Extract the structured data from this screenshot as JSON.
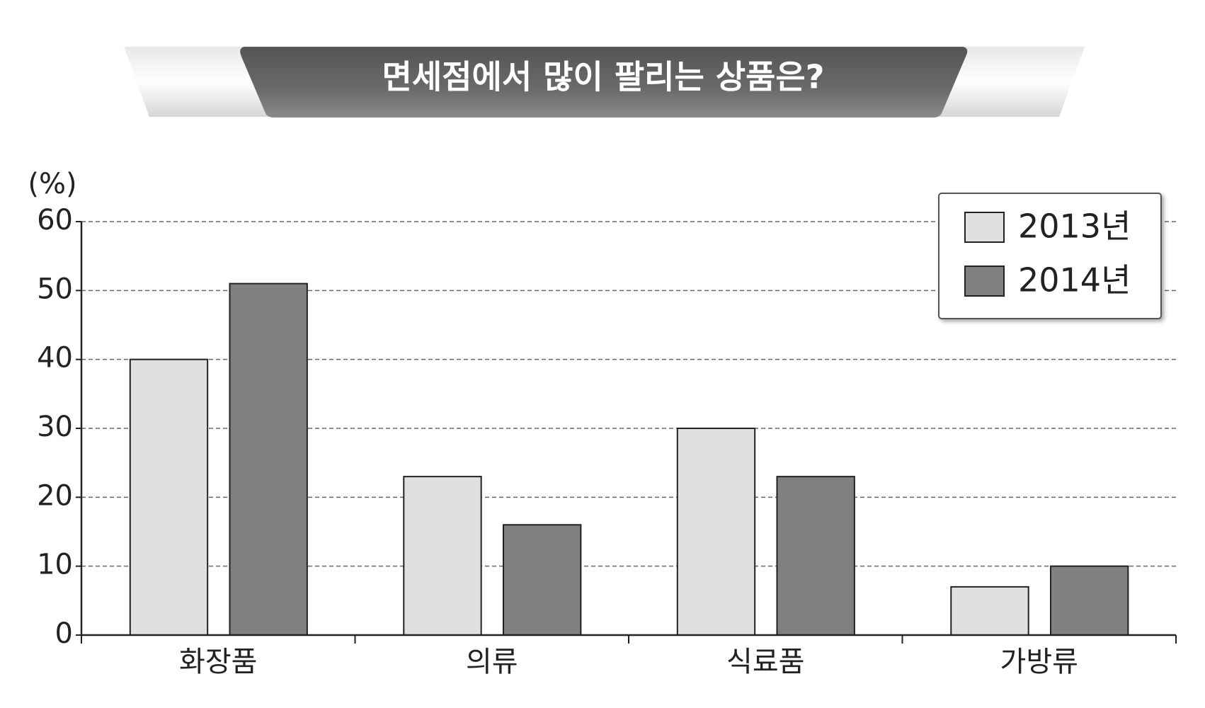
{
  "chart_data": {
    "type": "bar",
    "title": "면세점에서 많이 팔리는 상품은?",
    "y_axis_label": "(%)",
    "categories": [
      "화장품",
      "의류",
      "식료품",
      "가방류"
    ],
    "series": [
      {
        "name": "2013년",
        "color": "#e0e0e0",
        "values": [
          40,
          23,
          30,
          7
        ]
      },
      {
        "name": "2014년",
        "color": "#808080",
        "values": [
          51,
          16,
          23,
          10
        ]
      }
    ],
    "ylim": [
      0,
      60
    ],
    "yticks": [
      0,
      10,
      20,
      30,
      40,
      50,
      60
    ],
    "grid": true,
    "legend": "upper right"
  }
}
